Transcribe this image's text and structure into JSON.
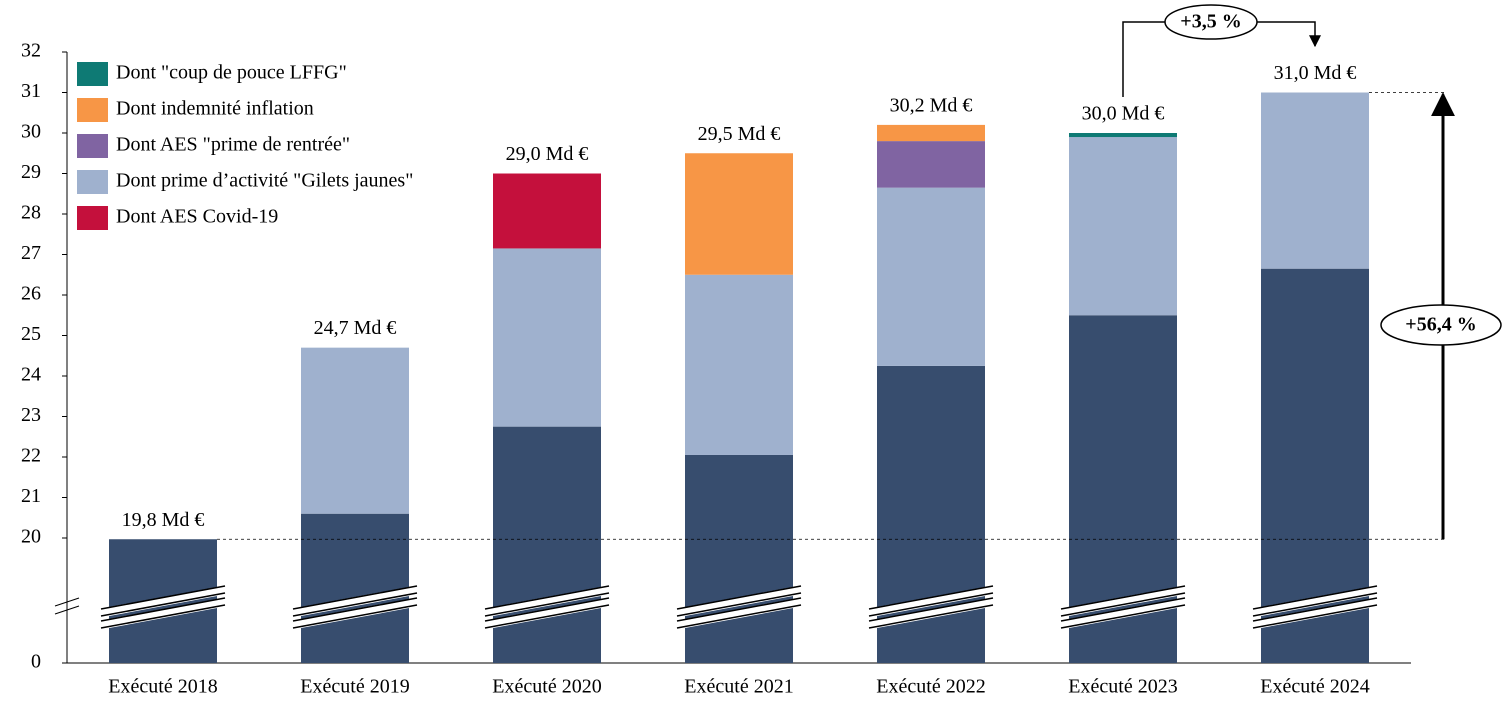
{
  "chart_data": {
    "type": "stacked_bar",
    "categories": [
      "Exécuté 2018",
      "Exécuté 2019",
      "Exécuté 2020",
      "Exécuté 2021",
      "Exécuté 2022",
      "Exécuté 2023",
      "Exécuté 2024"
    ],
    "series": [
      {
        "color": "#374d6e",
        "values": [
          19.8,
          20.6,
          22.75,
          22.05,
          24.25,
          25.5,
          26.65
        ]
      },
      {
        "name": "Dont prime d’activité \"Gilets jaunes\"",
        "color": "#9fb1ce",
        "values": [
          null,
          4.1,
          4.4,
          4.45,
          4.4,
          4.4,
          4.35
        ]
      },
      {
        "name": "Dont AES Covid-19",
        "color": "#c4103c",
        "values": [
          null,
          null,
          1.85,
          null,
          null,
          null,
          null
        ]
      },
      {
        "name": "Dont AES \"prime de rentrée\"",
        "color": "#8064a2",
        "values": [
          null,
          null,
          null,
          null,
          1.15,
          null,
          null
        ]
      },
      {
        "name": "Dont indemnité inflation",
        "color": "#f79646",
        "values": [
          null,
          null,
          null,
          3.0,
          0.4,
          null,
          null
        ]
      },
      {
        "name": "Dont \"coup de pouce LFFG\"",
        "color": "#0e7a74",
        "values": [
          null,
          null,
          null,
          null,
          null,
          0.1,
          null
        ]
      }
    ],
    "totals": [
      19.8,
      24.7,
      29.0,
      29.5,
      30.2,
      30.0,
      31.0
    ],
    "total_labels": [
      "19,8 Md €",
      "24,7 Md €",
      "29,0 Md €",
      "29,5 Md €",
      "30,2 Md €",
      "30,0 Md €",
      "31,0 Md €"
    ],
    "legend_order": [
      5,
      4,
      3,
      1,
      2
    ],
    "ylim": [
      0,
      32
    ],
    "yticks": [
      0,
      20,
      21,
      22,
      23,
      24,
      25,
      26,
      27,
      28,
      29,
      30,
      31,
      32
    ],
    "axis_break": [
      0,
      20
    ],
    "annotations": [
      "+3,5 %",
      "+56,4 %"
    ]
  }
}
